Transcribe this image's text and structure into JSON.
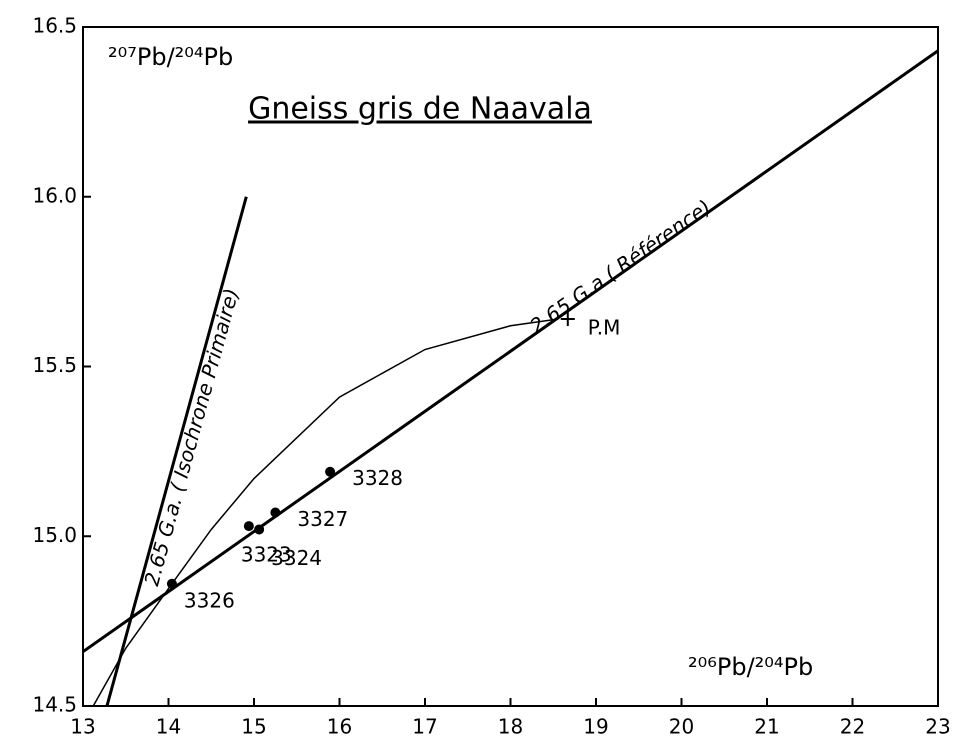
{
  "chart_data": {
    "type": "scatter",
    "title": "Gneiss gris de Naavala",
    "ylabel": "²⁰⁷Pb/²⁰⁴Pb",
    "xlabel": "²⁰⁶Pb/²⁰⁴Pb",
    "xlim": [
      13,
      23
    ],
    "ylim": [
      14.5,
      16.5
    ],
    "xticks": [
      13,
      14,
      15,
      16,
      17,
      18,
      19,
      20,
      21,
      22,
      23
    ],
    "yticks": [
      14.5,
      {
        "value": 15,
        "label": "15.0"
      },
      15.5,
      {
        "value": 16,
        "label": "16.0"
      },
      16.5
    ],
    "color": "#000000",
    "points": {
      "labels": [
        "3326",
        "3323",
        "3324",
        "3327",
        "3328"
      ],
      "x": [
        14.04,
        14.94,
        15.06,
        15.25,
        15.89
      ],
      "y": [
        14.86,
        15.03,
        15.02,
        15.07,
        15.19
      ]
    },
    "lines": [
      {
        "label": "2.65 G.a. ( Isochrone Primaire)",
        "x": [
          13.28,
          14.91
        ],
        "y": [
          14.5,
          16.0
        ]
      },
      {
        "label": "2.65 G.a ( Référence)",
        "x": [
          13,
          23
        ],
        "y": [
          14.66,
          16.43
        ]
      }
    ],
    "curve": {
      "x": [
        13.12,
        13.5,
        14.04,
        14.5,
        15,
        16,
        17,
        18,
        18.56
      ],
      "y": [
        14.5,
        14.67,
        14.86,
        15.02,
        15.17,
        15.41,
        15.55,
        15.62,
        15.64
      ]
    },
    "pm": {
      "label": "P.M",
      "x": 18.67,
      "y": 15.64
    }
  }
}
